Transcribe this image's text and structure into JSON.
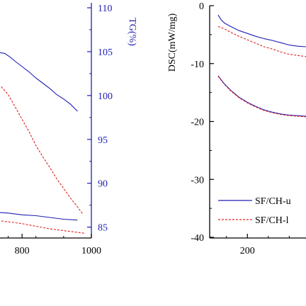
{
  "colors": {
    "blue": "#1f1fb3",
    "red": "#e02020",
    "axis": "#000000"
  },
  "chart_data": [
    {
      "type": "line",
      "panel": "left (cropped)",
      "xlabel": "",
      "ylabel_right": "TG(%)",
      "xlim": [
        720,
        1000
      ],
      "ylim_right": [
        84,
        110
      ],
      "x_ticks": [
        {
          "value": 800,
          "label": "800"
        },
        {
          "value": 1000,
          "label": "1000"
        }
      ],
      "y_ticks_right": [
        {
          "value": 85,
          "label": "85"
        },
        {
          "value": 90,
          "label": "90"
        },
        {
          "value": 95,
          "label": "95"
        },
        {
          "value": 100,
          "label": "100"
        },
        {
          "value": 105,
          "label": "105"
        },
        {
          "value": 110,
          "label": "110"
        }
      ],
      "series": [
        {
          "color": "blue",
          "dash": "solid",
          "x": [
            720,
            735,
            750,
            765,
            780,
            800,
            820,
            840,
            860,
            880,
            900,
            920,
            940,
            960
          ],
          "y": [
            105.0,
            104.9,
            104.8,
            104.4,
            103.9,
            103.3,
            102.7,
            102.0,
            101.4,
            100.8,
            100.1,
            99.6,
            99.0,
            98.2
          ]
        },
        {
          "color": "red",
          "dash": "dashed",
          "x": [
            720,
            740,
            760,
            780,
            800,
            820,
            840,
            860,
            880,
            900,
            920,
            940,
            960,
            975
          ],
          "y": [
            101.2,
            101.0,
            100.1,
            98.7,
            97.3,
            95.9,
            94.3,
            93.0,
            91.8,
            90.5,
            89.4,
            88.3,
            87.3,
            86.5
          ]
        },
        {
          "color": "blue",
          "dash": "solid",
          "x": [
            720,
            760,
            800,
            840,
            880,
            920,
            960
          ],
          "y": [
            86.7,
            86.6,
            86.4,
            86.3,
            86.1,
            85.9,
            85.8
          ]
        },
        {
          "color": "red",
          "dash": "dashed",
          "x": [
            720,
            760,
            800,
            840,
            880,
            920,
            960,
            980
          ],
          "y": [
            85.8,
            85.6,
            85.4,
            85.1,
            84.8,
            84.6,
            84.4,
            84.3
          ]
        }
      ]
    },
    {
      "type": "line",
      "panel": "right (cropped)",
      "xlabel": "",
      "ylabel": "DSC(mW/mg)",
      "xlim": [
        120,
        340
      ],
      "ylim": [
        -40,
        0
      ],
      "x_ticks": [
        {
          "value": 200,
          "label": "200"
        }
      ],
      "y_ticks": [
        {
          "value": 0,
          "label": "0"
        },
        {
          "value": -10,
          "label": "-10"
        },
        {
          "value": -20,
          "label": "-20"
        },
        {
          "value": -30,
          "label": "-30"
        },
        {
          "value": -40,
          "label": "-40"
        }
      ],
      "legend": {
        "placement": "bottom-right",
        "entries": [
          {
            "label": "SF/CH-u",
            "color": "blue",
            "dash": "solid"
          },
          {
            "label": "SF/CH-l",
            "color": "red",
            "dash": "dashed"
          }
        ]
      },
      "series": [
        {
          "color": "blue",
          "dash": "solid",
          "x": [
            130,
            137,
            145,
            160,
            180,
            200,
            220,
            240,
            260,
            280,
            300,
            320,
            340
          ],
          "y": [
            -1.6,
            -2.4,
            -3.0,
            -3.6,
            -4.3,
            -4.8,
            -5.3,
            -5.7,
            -6.0,
            -6.4,
            -6.8,
            -7.0,
            -7.1
          ]
        },
        {
          "color": "red",
          "dash": "dashed",
          "x": [
            130,
            145,
            160,
            180,
            200,
            220,
            240,
            260,
            280,
            300,
            320,
            340
          ],
          "y": [
            -3.6,
            -4.0,
            -4.6,
            -5.3,
            -5.9,
            -6.5,
            -7.1,
            -7.5,
            -8.0,
            -8.4,
            -8.6,
            -8.8
          ]
        },
        {
          "color": "blue",
          "dash": "solid",
          "x": [
            130,
            145,
            160,
            180,
            200,
            220,
            240,
            260,
            280,
            300,
            320,
            340
          ],
          "y": [
            -12.1,
            -13.5,
            -14.6,
            -15.8,
            -16.7,
            -17.4,
            -18.0,
            -18.4,
            -18.7,
            -18.9,
            -19.0,
            -19.1
          ]
        },
        {
          "color": "red",
          "dash": "dashed",
          "x": [
            130,
            145,
            160,
            180,
            200,
            220,
            240,
            260,
            280,
            300,
            320,
            340
          ],
          "y": [
            -12.2,
            -13.6,
            -14.7,
            -15.9,
            -16.8,
            -17.5,
            -18.1,
            -18.5,
            -18.8,
            -19.0,
            -19.1,
            -19.2
          ]
        }
      ]
    }
  ]
}
